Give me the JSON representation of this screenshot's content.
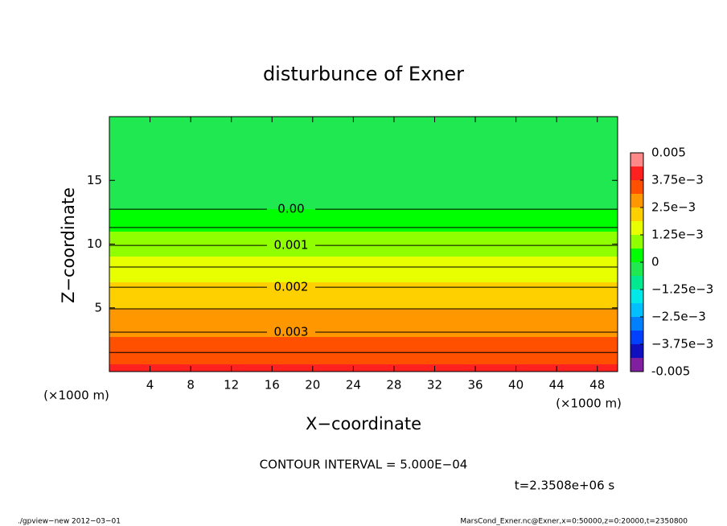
{
  "chart_data": {
    "type": "contour",
    "title": "disturbunce of Exner",
    "xlabel": "X−coordinate",
    "ylabel": "Z−coordinate",
    "x_unit": "(×1000 m)",
    "y_unit": "(×1000 m)",
    "xlim": [
      0,
      50
    ],
    "ylim": [
      0,
      20
    ],
    "xticks": [
      4,
      8,
      12,
      16,
      20,
      24,
      28,
      32,
      36,
      40,
      44,
      48
    ],
    "yticks": [
      5,
      10,
      15
    ],
    "profile": {
      "z": [
        0,
        1.5,
        3.09,
        4.92,
        6.62,
        8.2,
        9.9,
        11.3,
        12.74,
        16,
        20
      ],
      "values": [
        0.0039,
        0.0035,
        0.003,
        0.0025,
        0.002,
        0.0015,
        0.001,
        0.0005,
        0,
        -0.0004,
        -0.0006
      ]
    },
    "contour_levels": [
      0,
      0.0005,
      0.001,
      0.0015,
      0.002,
      0.0025,
      0.003,
      0.0035
    ],
    "contour_labels": [
      "0.00",
      null,
      "0.001",
      null,
      "0.002",
      null,
      "0.003",
      null
    ],
    "colorbar": {
      "levels": [
        -0.005,
        -0.004375,
        -0.00375,
        -0.003125,
        -0.0025,
        -0.001875,
        -0.00125,
        -0.000625,
        0,
        0.000625,
        0.00125,
        0.001875,
        0.0025,
        0.003125,
        0.00375,
        0.004375,
        0.005
      ],
      "colors": [
        "#8020a0",
        "#1010c0",
        "#0040ff",
        "#0080ff",
        "#00c0ff",
        "#00e8e8",
        "#00e890",
        "#20e850",
        "#00ff00",
        "#90ff00",
        "#e8ff00",
        "#ffd000",
        "#ff9800",
        "#ff5000",
        "#ff2020",
        "#ff8888"
      ],
      "ticks": [
        -0.005,
        {
          "value": -0.00375,
          "label": "−3.75e−3"
        },
        {
          "value": -0.0025,
          "label": "−2.5e−3"
        },
        {
          "value": -0.00125,
          "label": "−1.25e−3"
        },
        0,
        {
          "value": 0.00125,
          "label": "1.25e−3"
        },
        {
          "value": 0.0025,
          "label": "2.5e−3"
        },
        {
          "value": 0.00375,
          "label": "3.75e−3"
        },
        0.005
      ]
    },
    "contour_interval": "CONTOUR INTERVAL = 5.000E−04",
    "time": "t=2.3508e+06 s",
    "footer_left": "./gpview−new   2012−03−01",
    "footer_right": "MarsCond_Exner.nc@Exner,x=0:50000,z=0:20000,t=2350800"
  }
}
